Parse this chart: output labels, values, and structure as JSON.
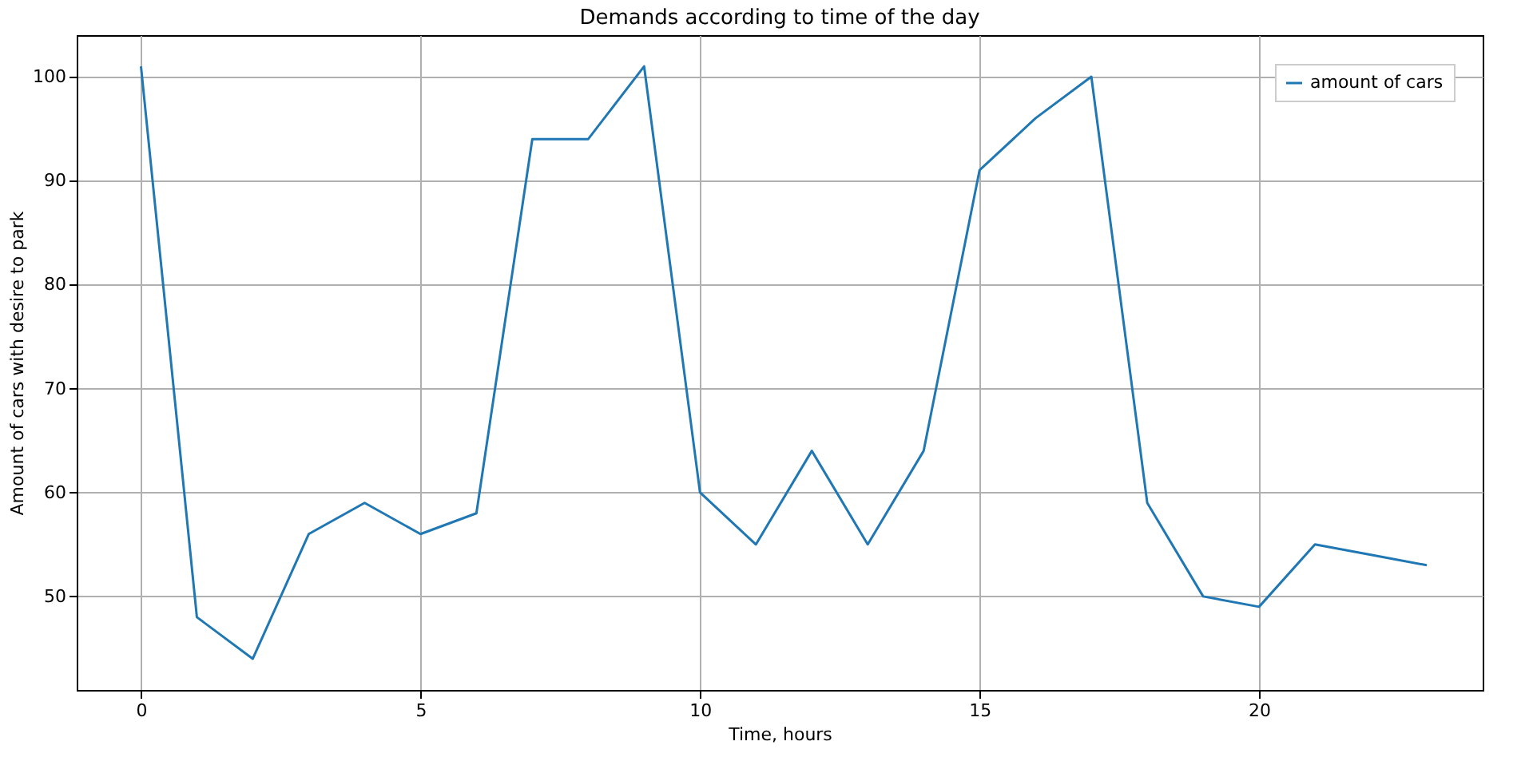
{
  "chart_data": {
    "type": "line",
    "title": "Demands according to time of the day",
    "xlabel": "Time, hours",
    "ylabel": "Amount of cars with desire to park",
    "x": [
      0,
      1,
      2,
      3,
      4,
      5,
      6,
      7,
      8,
      9,
      10,
      11,
      12,
      13,
      14,
      15,
      16,
      17,
      18,
      19,
      20,
      21,
      22,
      23
    ],
    "series": [
      {
        "name": "amount of cars",
        "color": "#1f77b4",
        "values": [
          101,
          48,
          44,
          56,
          59,
          56,
          58,
          94,
          94,
          101,
          60,
          55,
          64,
          55,
          64,
          91,
          96,
          100,
          59,
          50,
          49,
          55,
          54,
          53
        ]
      }
    ],
    "xlim": [
      -1.15,
      24
    ],
    "ylim": [
      41,
      104
    ],
    "xticks": [
      0,
      5,
      10,
      15,
      20
    ],
    "yticks": [
      50,
      60,
      70,
      80,
      90,
      100
    ],
    "grid": true,
    "legend": "top right",
    "marker": "none",
    "line_style": "solid"
  }
}
